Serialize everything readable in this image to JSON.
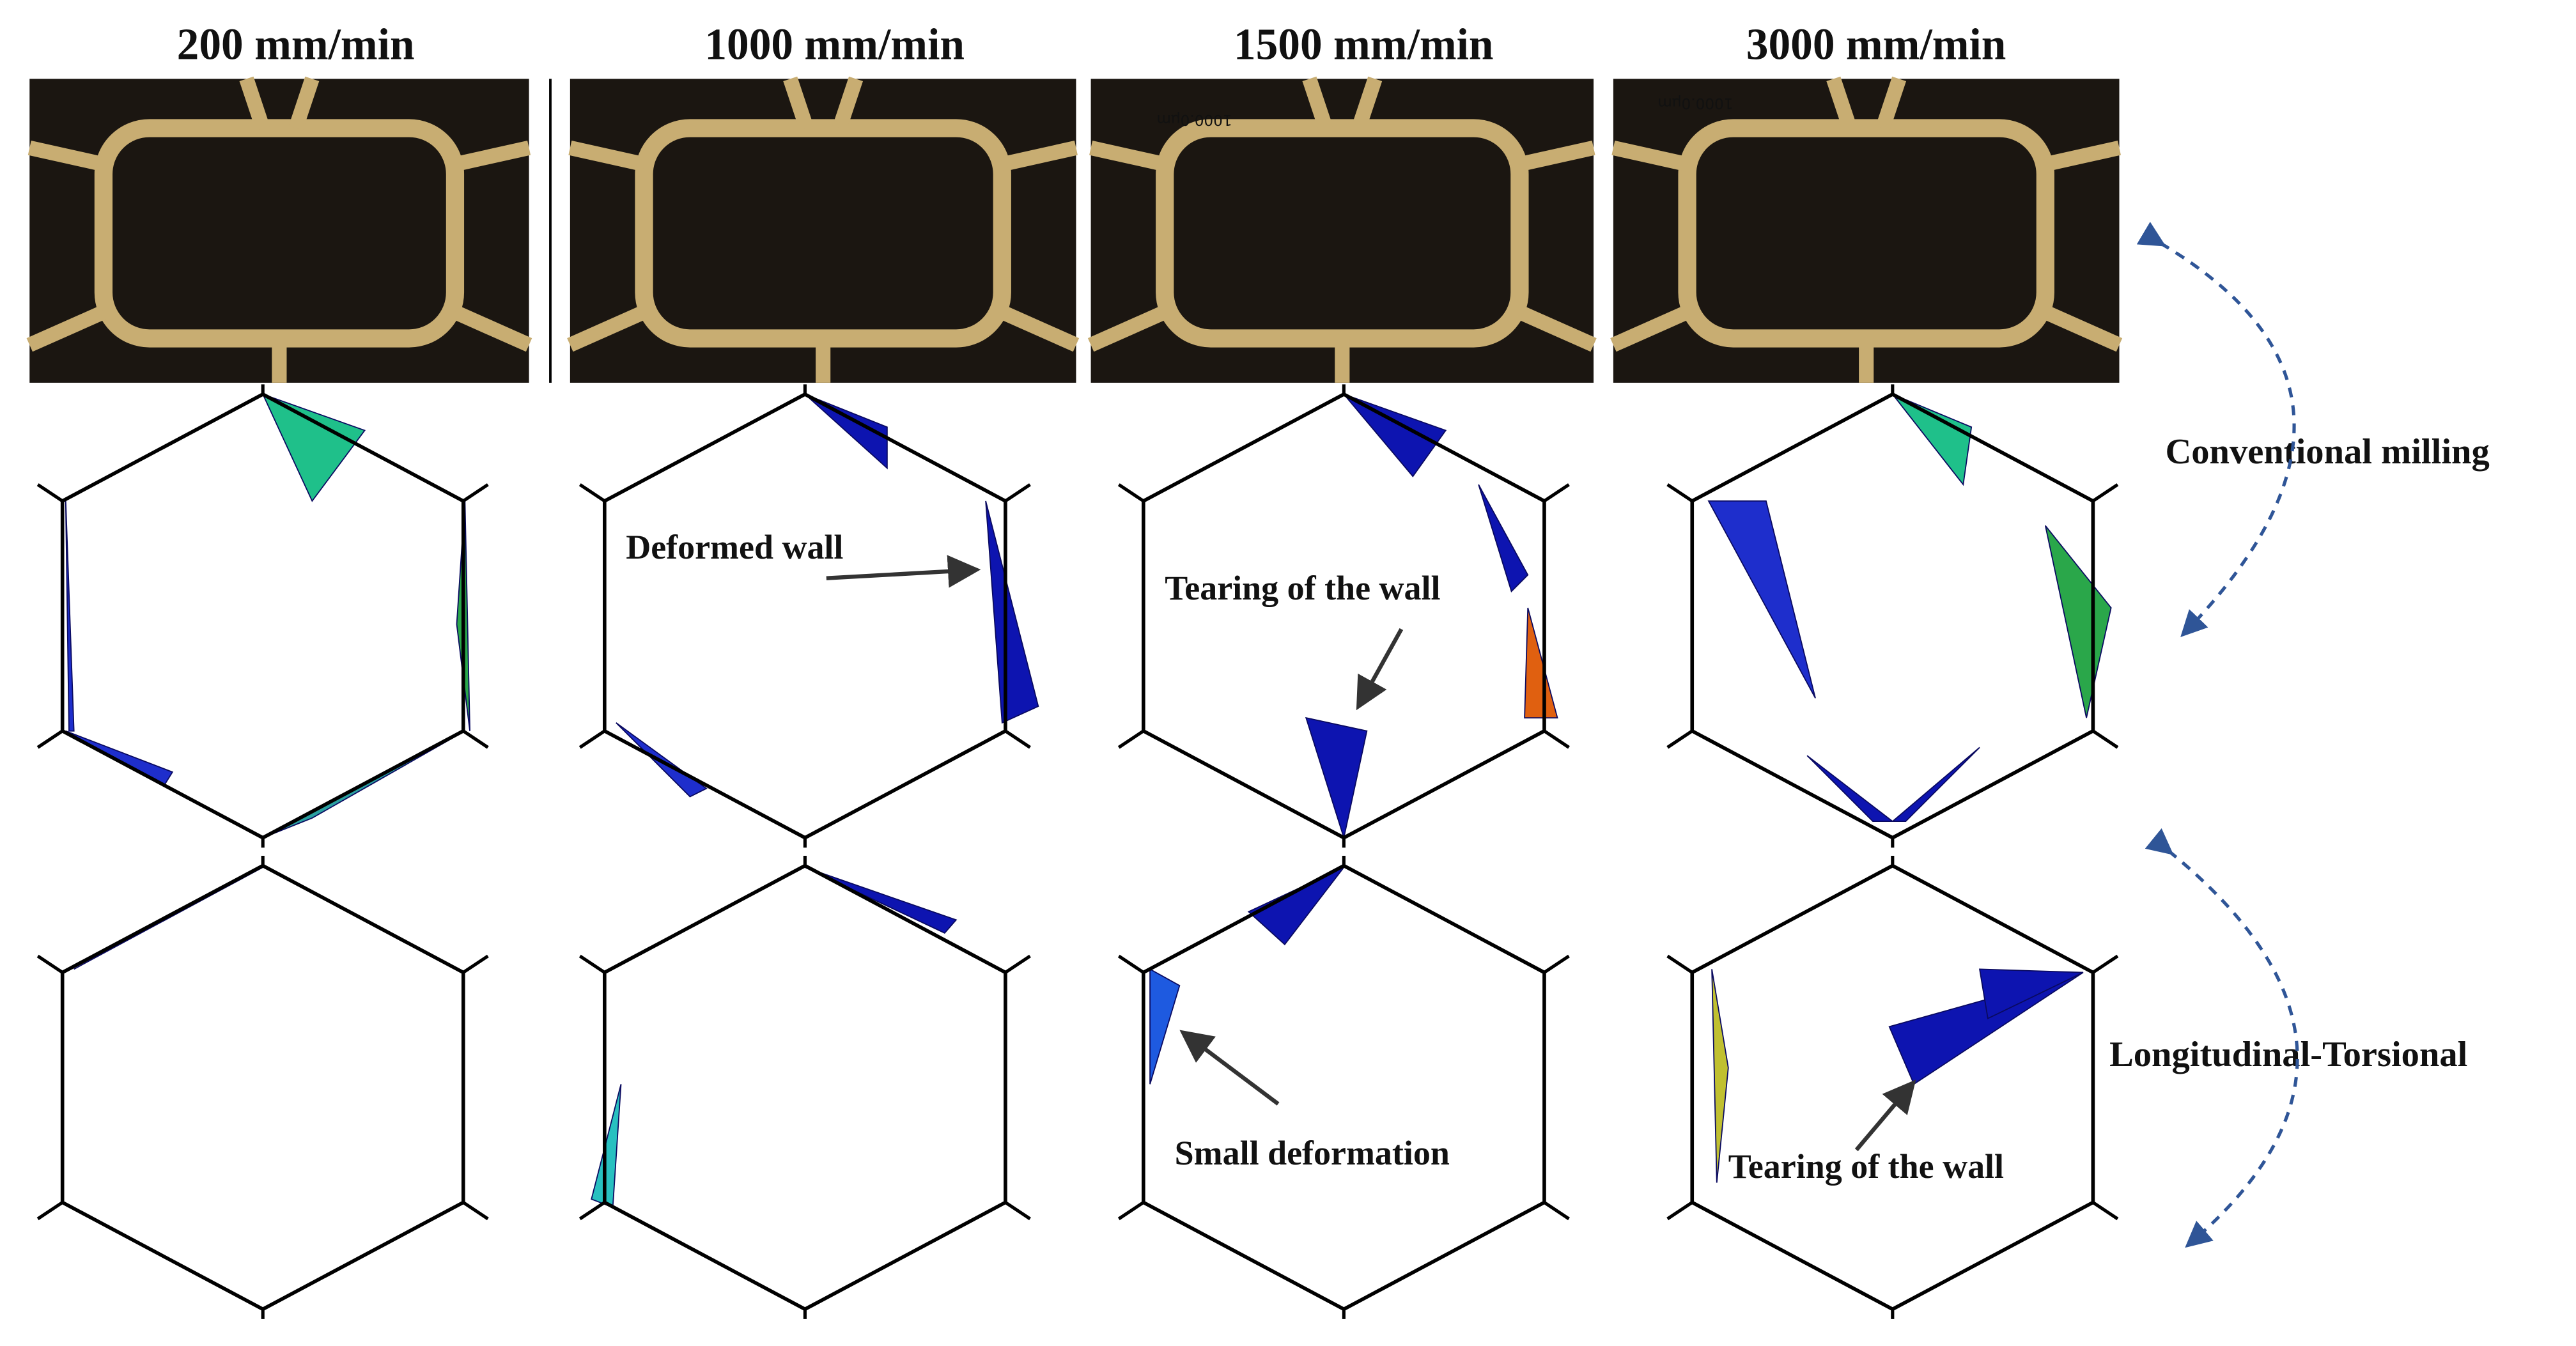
{
  "columns": [
    "200 mm/min",
    "1000 mm/min",
    "1500 mm/min",
    "3000 mm/min"
  ],
  "rows": [
    "Conventional milling",
    "Longitudinal-Torsional"
  ],
  "annotations": [
    "Deformed wall",
    "Tearing of the wall",
    "Small deformation",
    "Tearing of the wall"
  ],
  "scale_labels": [
    "1000.0µm",
    "1000.0µm"
  ]
}
